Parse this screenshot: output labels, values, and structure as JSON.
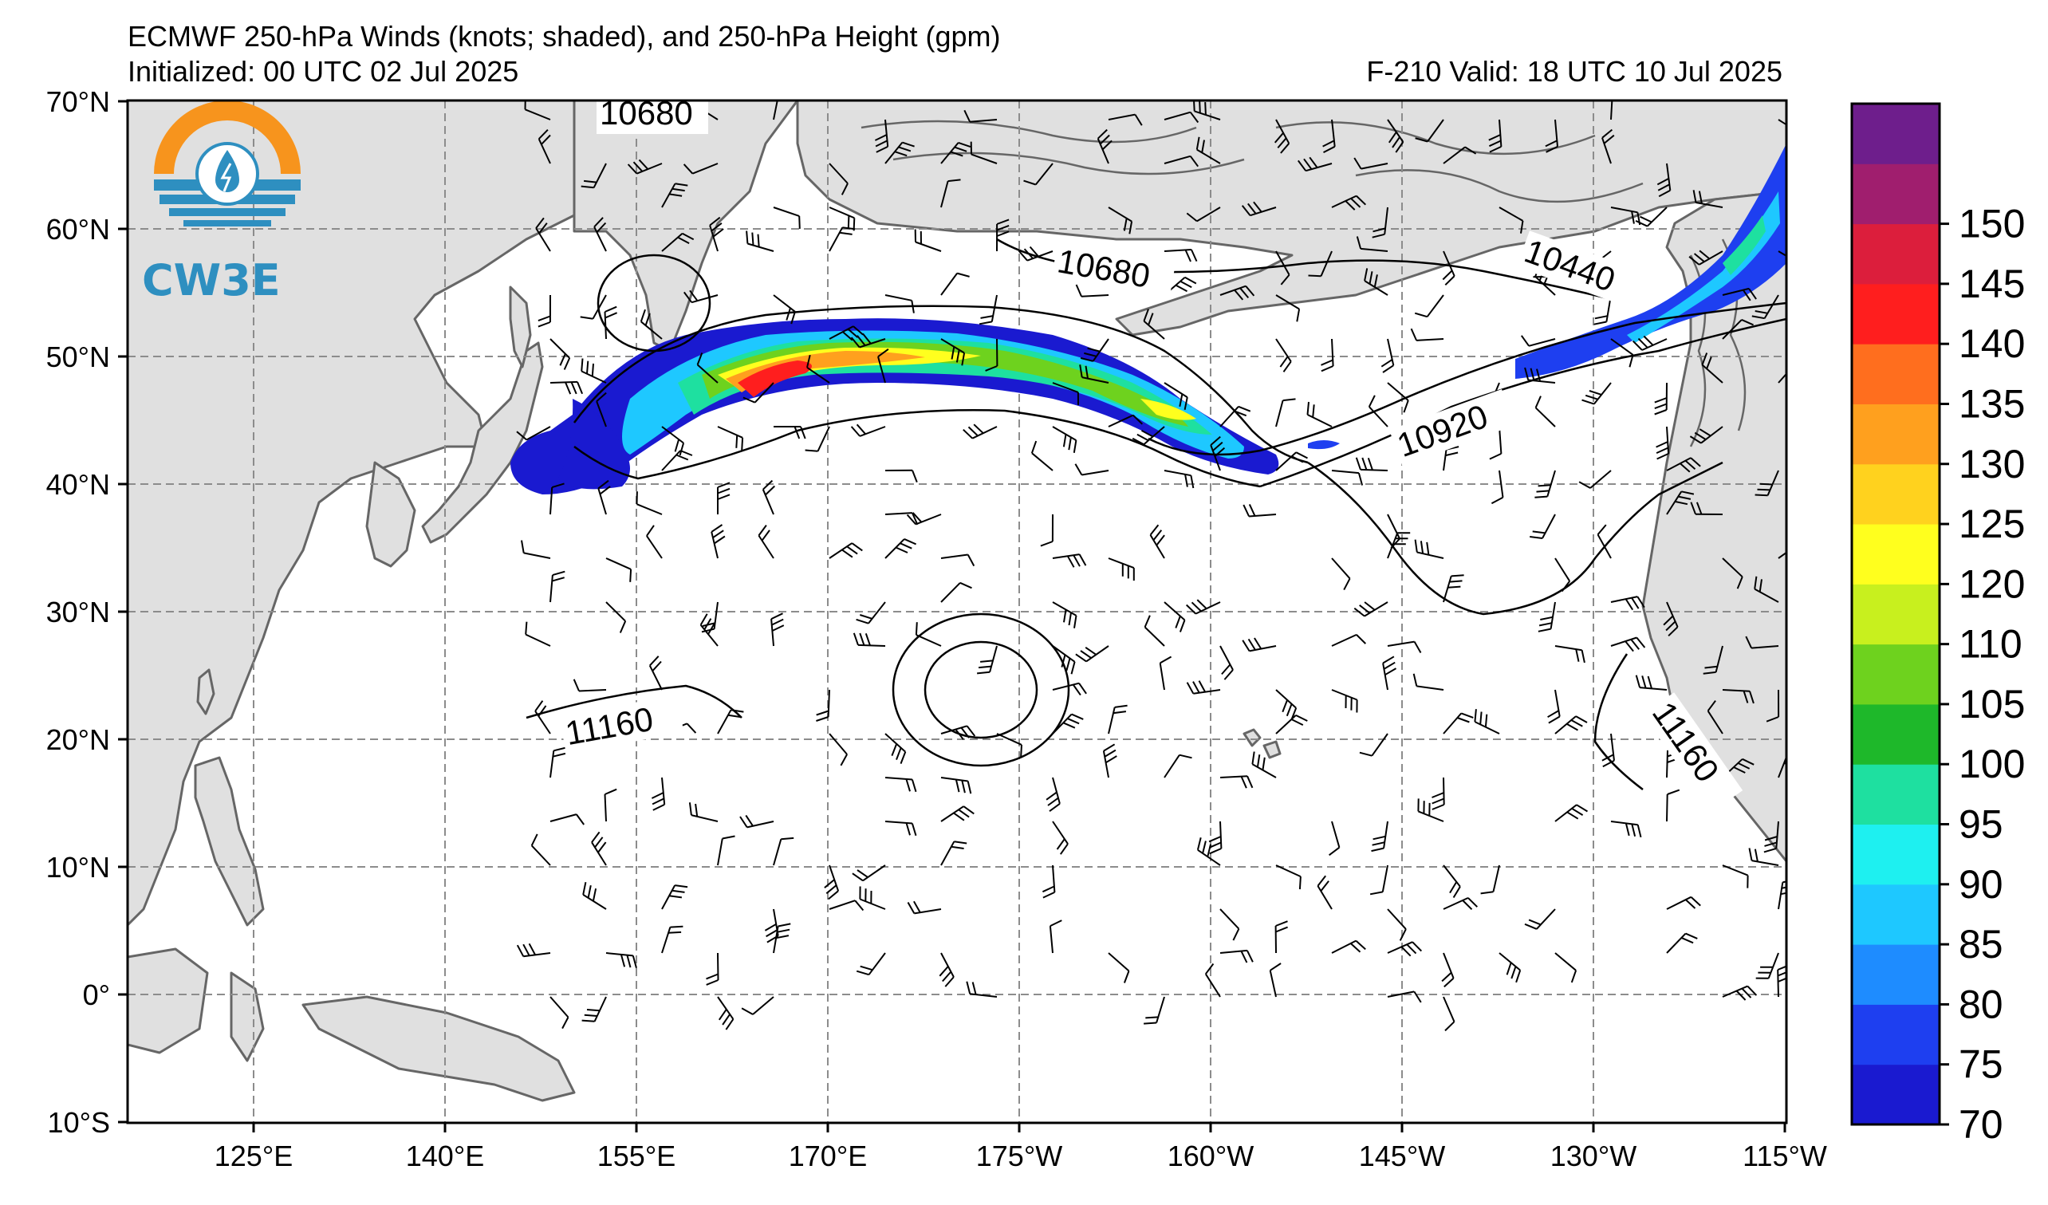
{
  "header": {
    "title": "ECMWF 250-hPa Winds (knots; shaded), and 250-hPa Height (gpm)",
    "initialized": "Initialized: 00 UTC 02 Jul 2025",
    "valid": "F-210  Valid: 18 UTC 10 Jul 2025"
  },
  "logo": {
    "text": "CW3E",
    "icon": "water-drop-sun-icon"
  },
  "axes": {
    "lat_labels": [
      "70°N",
      "60°N",
      "50°N",
      "40°N",
      "30°N",
      "20°N",
      "10°N",
      "0°",
      "10°S"
    ],
    "lon_labels": [
      "125°E",
      "140°E",
      "155°E",
      "170°E",
      "175°W",
      "160°W",
      "145°W",
      "130°W",
      "115°W"
    ]
  },
  "colorbar": {
    "labels": [
      "70",
      "75",
      "80",
      "85",
      "90",
      "95",
      "100",
      "105",
      "110",
      "120",
      "125",
      "130",
      "135",
      "140",
      "145",
      "150"
    ],
    "colors": [
      "#1a1ad0",
      "#1e3ff0",
      "#1e8cff",
      "#1ec8ff",
      "#1ef0f0",
      "#1ee0a0",
      "#1eb82a",
      "#6ed21e",
      "#c8f01e",
      "#ffff1e",
      "#ffd21e",
      "#ffa01e",
      "#ff6e1e",
      "#ff1e1e",
      "#dc1e3c",
      "#a01e6e",
      "#6e1e8c"
    ]
  },
  "contours": {
    "label_10680_top": "10680",
    "label_10680": "10680",
    "label_10440": "10440",
    "label_10920": "10920",
    "label_11160_left": "11160",
    "label_11160_right": "11160"
  },
  "colors": {
    "land": "#e0e0e0",
    "coast": "#666666",
    "grid": "#8c8c8c"
  }
}
